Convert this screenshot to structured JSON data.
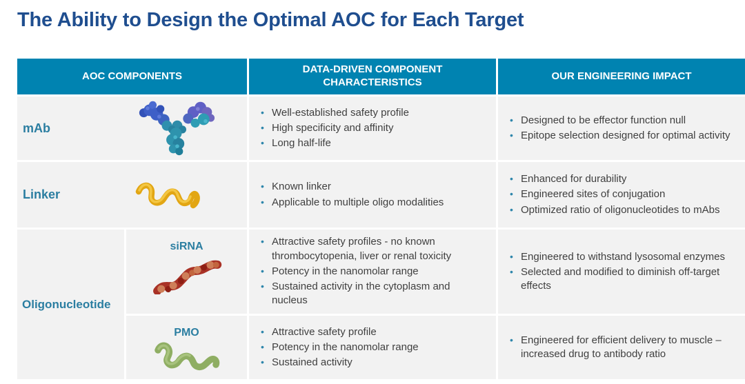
{
  "slide": {
    "title": "The Ability to Design the Optimal AOC for Each Target"
  },
  "table": {
    "headers": [
      {
        "label": "AOC COMPONENTS"
      },
      {
        "label": "DATA-DRIVEN COMPONENT CHARACTERISTICS"
      },
      {
        "label": "OUR ENGINEERING IMPACT"
      }
    ],
    "rows": [
      {
        "component": "mAb",
        "characteristics": [
          "Well-established safety profile",
          "High specificity and affinity",
          "Long half-life"
        ],
        "impact": [
          "Designed to be effector function null",
          "Epitope selection designed for optimal activity"
        ]
      },
      {
        "component": "Linker",
        "characteristics": [
          "Known linker",
          "Applicable to multiple oligo modalities"
        ],
        "impact": [
          "Enhanced for durability",
          "Engineered sites of conjugation",
          "Optimized ratio of oligonucleotides to mAbs"
        ]
      },
      {
        "component": "Oligonucleotide",
        "subcomponent": "siRNA",
        "characteristics": [
          "Attractive safety profiles - no known thrombocytopenia, liver or renal toxicity",
          "Potency in the nanomolar range",
          "Sustained activity in the cytoplasm and nucleus"
        ],
        "impact": [
          "Engineered to withstand lysosomal enzymes",
          "Selected and modified to diminish off-target effects"
        ]
      },
      {
        "subcomponent": "PMO",
        "characteristics": [
          "Attractive safety profile",
          "Potency in the nanomolar range",
          "Sustained activity"
        ],
        "impact": [
          "Engineered for efficient delivery to muscle – increased drug to antibody ratio"
        ]
      }
    ]
  },
  "images": {
    "mab": "antibody-molecule",
    "linker": "linker-molecule",
    "sirna": "sirna-molecule",
    "pmo": "pmo-molecule"
  },
  "colors": {
    "title": "#1F4E8F",
    "header_bg": "#0083B1",
    "header_text": "#FFFFFF",
    "label_text": "#2B7EA1",
    "body_text": "#3F3F3F",
    "bullet": "#2E86AB",
    "cell_bg": "#F2F2F2"
  }
}
